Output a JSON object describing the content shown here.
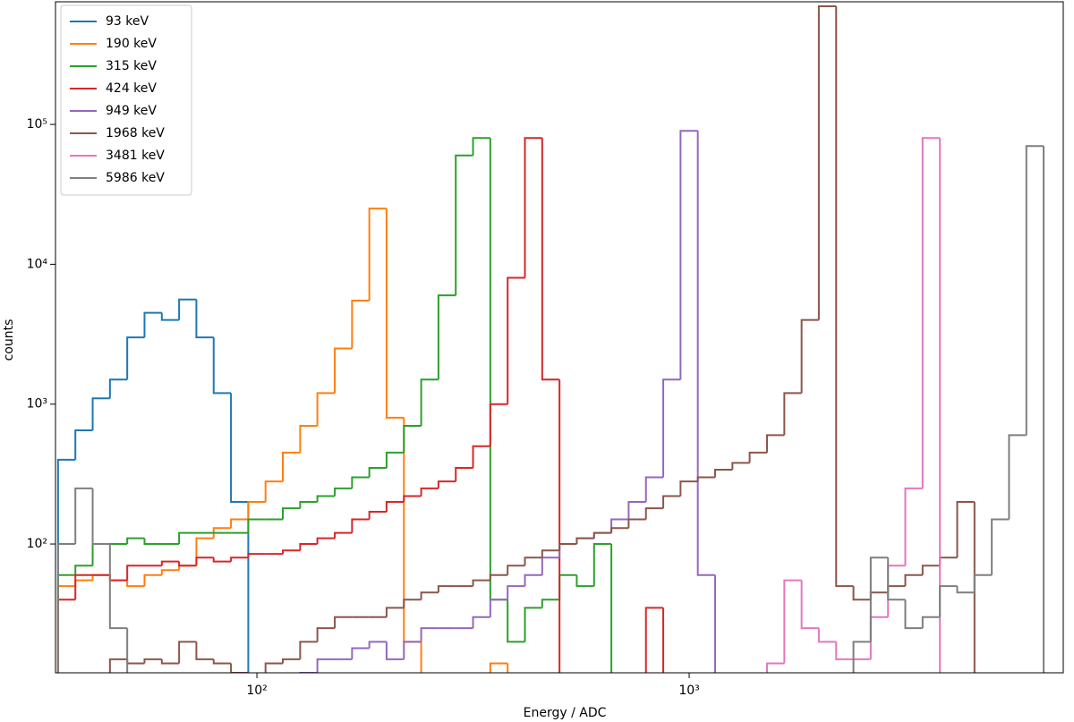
{
  "chart_data": {
    "type": "histogram",
    "xlabel": "Energy / ADC",
    "ylabel": "counts",
    "xscale": "log",
    "yscale": "log",
    "legend": "upper left",
    "xlim": [
      34.2,
      7335
    ],
    "ylim": [
      12,
      753000
    ],
    "xticks": [
      {
        "value": 100,
        "label": "10²"
      },
      {
        "value": 1000,
        "label": "10³"
      }
    ],
    "yticks": [
      {
        "value": 100,
        "label": "10²"
      },
      {
        "value": 1000,
        "label": "10³"
      },
      {
        "value": 10000,
        "label": "10⁴"
      },
      {
        "value": 100000,
        "label": "10⁵"
      }
    ],
    "bins": [
      34.67,
      38.02,
      41.69,
      45.71,
      50.12,
      54.95,
      60.26,
      66.07,
      72.44,
      79.43,
      87.1,
      95.5,
      104.7,
      114.8,
      125.9,
      138.0,
      151.4,
      166.0,
      182.0,
      199.5,
      218.8,
      239.9,
      263.0,
      288.4,
      316.2,
      346.7,
      380.2,
      416.9,
      457.1,
      501.2,
      549.5,
      602.6,
      660.7,
      724.4,
      794.3,
      871.0,
      955.0,
      1047,
      1148,
      1259,
      1380,
      1514,
      1660,
      1820,
      1995,
      2188,
      2399,
      2630,
      2884,
      3162,
      3467,
      3802,
      4169,
      4571,
      5012,
      5495,
      6026,
      6607,
      7244
    ],
    "series": [
      {
        "name": "93 keV",
        "color": "#1f77b4",
        "values": [
          400,
          650,
          1100,
          1500,
          3000,
          4500,
          4000,
          5600,
          3000,
          1200,
          200,
          0,
          0,
          0,
          0,
          0,
          0,
          0,
          0,
          0,
          0,
          0,
          0,
          0,
          0,
          0,
          0,
          0,
          0,
          0,
          0,
          0,
          0,
          0,
          0,
          0,
          0,
          0,
          0,
          0,
          0,
          0,
          0,
          0,
          0,
          0,
          0,
          0,
          0,
          0,
          0,
          0,
          0,
          0,
          0,
          0,
          0,
          0
        ]
      },
      {
        "name": "190 keV",
        "color": "#ff7f0e",
        "values": [
          50,
          55,
          60,
          55,
          50,
          60,
          65,
          70,
          110,
          130,
          150,
          200,
          280,
          450,
          700,
          1200,
          2500,
          5500,
          25000,
          800,
          20,
          0,
          0,
          0,
          0,
          14,
          0,
          0,
          0,
          0,
          0,
          0,
          0,
          0,
          0,
          0,
          0,
          0,
          0,
          0,
          0,
          0,
          0,
          0,
          0,
          0,
          0,
          0,
          0,
          0,
          0,
          0,
          0,
          0,
          0,
          0,
          0,
          0
        ]
      },
      {
        "name": "315 keV",
        "color": "#2ca02c",
        "values": [
          60,
          70,
          100,
          100,
          110,
          100,
          100,
          120,
          120,
          120,
          120,
          150,
          150,
          180,
          200,
          220,
          250,
          300,
          350,
          450,
          700,
          1500,
          6000,
          60000,
          80000,
          40,
          20,
          35,
          40,
          60,
          50,
          100,
          0,
          0,
          0,
          0,
          0,
          0,
          0,
          0,
          0,
          0,
          0,
          0,
          0,
          0,
          0,
          0,
          0,
          0,
          0,
          0,
          0,
          0,
          0,
          0,
          0,
          0
        ]
      },
      {
        "name": "424 keV",
        "color": "#d62728",
        "values": [
          40,
          60,
          60,
          55,
          70,
          70,
          75,
          70,
          80,
          75,
          80,
          85,
          85,
          90,
          100,
          110,
          120,
          150,
          170,
          200,
          220,
          250,
          280,
          350,
          500,
          1000,
          8000,
          80000,
          1500,
          0,
          0,
          0,
          0,
          0,
          35,
          0,
          0,
          0,
          0,
          0,
          0,
          0,
          0,
          0,
          0,
          0,
          0,
          0,
          0,
          0,
          0,
          0,
          0,
          0,
          0,
          0,
          0,
          0
        ]
      },
      {
        "name": "949 keV",
        "color": "#9467bd",
        "values": [
          0,
          0,
          0,
          0,
          0,
          0,
          0,
          0,
          0,
          0,
          0,
          0,
          0,
          0,
          12,
          15,
          15,
          18,
          20,
          15,
          20,
          25,
          25,
          25,
          30,
          40,
          50,
          60,
          80,
          100,
          110,
          120,
          150,
          200,
          300,
          1500,
          90000,
          60,
          0,
          0,
          0,
          0,
          0,
          0,
          0,
          0,
          0,
          0,
          0,
          0,
          0,
          0,
          0,
          0,
          0,
          0,
          0,
          0
        ]
      },
      {
        "name": "1968 keV",
        "color": "#8c564b",
        "values": [
          0,
          0,
          0,
          15,
          14,
          15,
          14,
          20,
          15,
          14,
          12,
          0,
          14,
          15,
          20,
          25,
          30,
          30,
          30,
          35,
          40,
          45,
          50,
          50,
          55,
          60,
          70,
          80,
          90,
          100,
          110,
          120,
          130,
          150,
          180,
          220,
          280,
          300,
          340,
          380,
          450,
          600,
          1200,
          4000,
          700000,
          50,
          40,
          45,
          50,
          60,
          70,
          80,
          200,
          0,
          0,
          0,
          0,
          0
        ]
      },
      {
        "name": "3481 keV",
        "color": "#e377c2",
        "values": [
          0,
          0,
          0,
          0,
          0,
          0,
          0,
          0,
          0,
          0,
          0,
          0,
          0,
          0,
          0,
          0,
          0,
          0,
          0,
          0,
          0,
          0,
          0,
          0,
          0,
          0,
          0,
          0,
          0,
          0,
          0,
          0,
          0,
          0,
          0,
          0,
          0,
          0,
          0,
          0,
          0,
          14,
          55,
          25,
          20,
          15,
          15,
          30,
          70,
          250,
          80000,
          0,
          0,
          0,
          0,
          0,
          0,
          0
        ]
      },
      {
        "name": "5986 keV",
        "color": "#7f7f7f",
        "values": [
          100,
          250,
          100,
          25,
          0,
          0,
          0,
          0,
          0,
          0,
          0,
          0,
          0,
          0,
          0,
          0,
          0,
          0,
          0,
          0,
          0,
          0,
          0,
          0,
          0,
          0,
          0,
          0,
          0,
          0,
          0,
          0,
          0,
          0,
          0,
          0,
          0,
          0,
          0,
          0,
          0,
          0,
          0,
          0,
          0,
          0,
          20,
          80,
          40,
          25,
          30,
          50,
          45,
          60,
          150,
          600,
          70000,
          0
        ]
      }
    ]
  }
}
